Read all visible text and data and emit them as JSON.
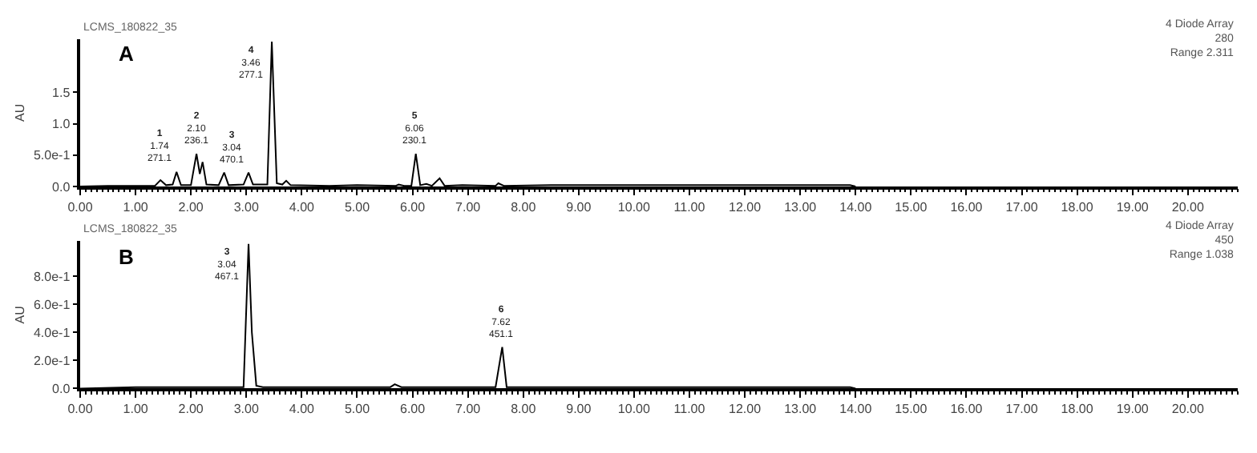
{
  "chart_data": [
    {
      "type": "line",
      "title": "A",
      "subtitle": "LCMS_180822_35",
      "ylabel": "AU",
      "xlim": [
        0,
        20.9
      ],
      "ylim": [
        0,
        2.35
      ],
      "xticks": [
        {
          "value": 0,
          "label": "0.00"
        },
        {
          "value": 1,
          "label": "1.00"
        },
        {
          "value": 2,
          "label": "2.00"
        },
        {
          "value": 3,
          "label": "3.00"
        },
        {
          "value": 4,
          "label": "4.00"
        },
        {
          "value": 5,
          "label": "5.00"
        },
        {
          "value": 6,
          "label": "6.00"
        },
        {
          "value": 7,
          "label": "7.00"
        },
        {
          "value": 8,
          "label": "8.00"
        },
        {
          "value": 9,
          "label": "9.00"
        },
        {
          "value": 10,
          "label": "10.00"
        },
        {
          "value": 11,
          "label": "11.00"
        },
        {
          "value": 12,
          "label": "12.00"
        },
        {
          "value": 13,
          "label": "13.00"
        },
        {
          "value": 14,
          "label": "14.00"
        },
        {
          "value": 15,
          "label": "15.00"
        },
        {
          "value": 16,
          "label": "16.00"
        },
        {
          "value": 17,
          "label": "17.00"
        },
        {
          "value": 18,
          "label": "18.00"
        },
        {
          "value": 19,
          "label": "19.00"
        },
        {
          "value": 20,
          "label": "20.00"
        }
      ],
      "yticks": [
        {
          "value": 0,
          "label": "0.0"
        },
        {
          "value": 0.5,
          "label": "5.0e-1"
        },
        {
          "value": 1,
          "label": "1.0"
        },
        {
          "value": 1.5,
          "label": "1.5"
        }
      ],
      "series": [
        {
          "color": "#000000",
          "x": [
            0,
            0.5,
            1.0,
            1.35,
            1.45,
            1.55,
            1.67,
            1.74,
            1.82,
            2.0,
            2.1,
            2.16,
            2.21,
            2.28,
            2.5,
            2.6,
            2.68,
            2.95,
            3.04,
            3.12,
            3.38,
            3.46,
            3.55,
            3.65,
            3.72,
            3.8,
            4.5,
            5.0,
            5.7,
            5.75,
            5.85,
            5.98,
            6.06,
            6.14,
            6.25,
            6.35,
            6.49,
            6.58,
            6.9,
            7.5,
            7.55,
            7.65,
            8.5,
            9.5,
            11,
            12.5,
            13.9,
            14.0
          ],
          "values": [
            0,
            0.01,
            0.01,
            0.01,
            0.1,
            0.02,
            0.03,
            0.23,
            0.02,
            0.02,
            0.52,
            0.2,
            0.39,
            0.03,
            0.02,
            0.22,
            0.02,
            0.03,
            0.22,
            0.03,
            0.03,
            2.31,
            0.05,
            0.03,
            0.09,
            0.02,
            0.01,
            0.02,
            0.01,
            0.03,
            0.01,
            0.01,
            0.52,
            0.02,
            0.04,
            0.01,
            0.13,
            0.01,
            0.02,
            0.01,
            0.05,
            0.01,
            0.02,
            0.02,
            0.02,
            0.02,
            0.02,
            0
          ]
        }
      ],
      "annotations": [
        {
          "text": "1\n1.74\n271.1",
          "x": 1.74,
          "y": 0.23
        },
        {
          "text": "2\n2.10\n236.1",
          "x": 2.1,
          "y": 0.52
        },
        {
          "text": "3\n3.04\n470.1",
          "x": 3.04,
          "y": 0.22
        },
        {
          "text": "4\n3.46\n277.1",
          "x": 3.46,
          "y": 2.31
        },
        {
          "text": "5\n6.06\n230.1",
          "x": 6.06,
          "y": 0.52
        },
        "4 Diode Array\n280\nRange 2.311"
      ],
      "line_style": "solid",
      "marker": "none"
    },
    {
      "type": "line",
      "title": "B",
      "subtitle": "LCMS_180822_35",
      "ylabel": "AU",
      "xlim": [
        0,
        20.9
      ],
      "ylim": [
        0,
        1.05
      ],
      "xticks": [
        {
          "value": 0,
          "label": "0.00"
        },
        {
          "value": 1,
          "label": "1.00"
        },
        {
          "value": 2,
          "label": "2.00"
        },
        {
          "value": 3,
          "label": "3.00"
        },
        {
          "value": 4,
          "label": "4.00"
        },
        {
          "value": 5,
          "label": "5.00"
        },
        {
          "value": 6,
          "label": "6.00"
        },
        {
          "value": 7,
          "label": "7.00"
        },
        {
          "value": 8,
          "label": "8.00"
        },
        {
          "value": 9,
          "label": "9.00"
        },
        {
          "value": 10,
          "label": "10.00"
        },
        {
          "value": 11,
          "label": "11.00"
        },
        {
          "value": 12,
          "label": "12.00"
        },
        {
          "value": 13,
          "label": "13.00"
        },
        {
          "value": 14,
          "label": "14.00"
        },
        {
          "value": 15,
          "label": "15.00"
        },
        {
          "value": 16,
          "label": "16.00"
        },
        {
          "value": 17,
          "label": "17.00"
        },
        {
          "value": 18,
          "label": "18.00"
        },
        {
          "value": 19,
          "label": "19.00"
        },
        {
          "value": 20,
          "label": "20.00"
        }
      ],
      "yticks": [
        {
          "value": 0,
          "label": "0.0"
        },
        {
          "value": 0.2,
          "label": "2.0e-1"
        },
        {
          "value": 0.4,
          "label": "4.0e-1"
        },
        {
          "value": 0.6,
          "label": "6.0e-1"
        },
        {
          "value": 0.8,
          "label": "8.0e-1"
        }
      ],
      "series": [
        {
          "color": "#000000",
          "x": [
            0,
            1,
            2,
            2.95,
            3.04,
            3.1,
            3.18,
            3.3,
            3.6,
            4.4,
            5.6,
            5.68,
            5.8,
            7.5,
            7.62,
            7.7,
            9,
            11,
            13.9,
            14
          ],
          "values": [
            0,
            0.01,
            0.01,
            0.01,
            1.03,
            0.4,
            0.02,
            0.01,
            0.01,
            0.01,
            0.01,
            0.03,
            0.01,
            0.01,
            0.295,
            0.01,
            0.01,
            0.01,
            0.01,
            0
          ]
        }
      ],
      "annotations": [
        {
          "text": "3\n3.04\n467.1",
          "x": 3.04,
          "y": 1.03
        },
        {
          "text": "6\n7.62\n451.1",
          "x": 7.62,
          "y": 0.295
        },
        "4 Diode Array\n450\nRange 1.038"
      ],
      "line_style": "solid",
      "marker": "none"
    }
  ]
}
